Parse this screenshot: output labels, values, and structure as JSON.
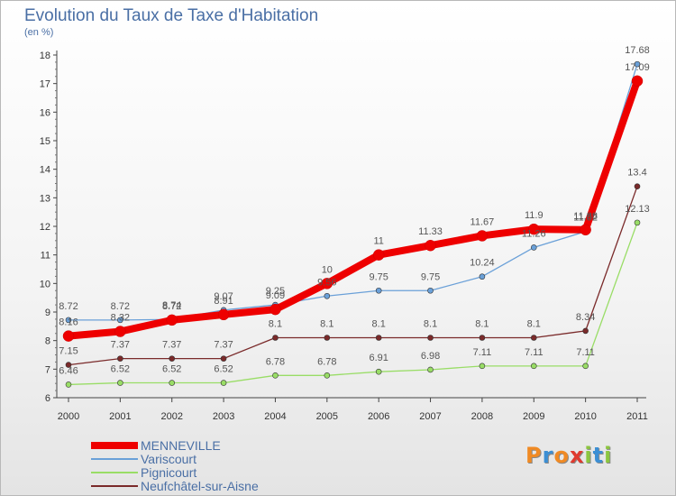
{
  "header": {
    "title": "Evolution du Taux de Taxe d'Habitation",
    "subtitle": "(en %)"
  },
  "logo": {
    "letters": [
      "P",
      "r",
      "o",
      "x",
      "i",
      "t",
      "i"
    ],
    "colors": [
      "#f08a24",
      "#3c8fd4",
      "#f08a24",
      "#e03a2e",
      "#8cc63f",
      "#3c8fd4",
      "#8cc63f"
    ]
  },
  "chart_data": {
    "type": "line",
    "title": "Evolution du Taux de Taxe d'Habitation",
    "subtitle": "(en %)",
    "xlabel": "",
    "ylabel": "",
    "ylim": [
      6,
      18
    ],
    "yticks": [
      "6",
      "7",
      "8",
      "9",
      "10",
      "11",
      "12",
      "13",
      "14",
      "15",
      "16",
      "17",
      "18"
    ],
    "categories": [
      "2000",
      "2001",
      "2002",
      "2003",
      "2004",
      "2005",
      "2006",
      "2007",
      "2008",
      "2009",
      "2010",
      "2011"
    ],
    "grid": false,
    "legend_position": "bottom-left",
    "series": [
      {
        "name": "MENNEVILLE",
        "color": "#ee0000",
        "values": [
          8.16,
          8.32,
          8.72,
          8.91,
          9.09,
          10,
          11,
          11.33,
          11.67,
          11.9,
          11.88,
          17.09
        ],
        "labels": [
          "8.16",
          "8.32",
          "8.72",
          "8.91",
          "9.09",
          "10",
          "11",
          "11.33",
          "11.67",
          "11.9",
          "11.88",
          "17.09"
        ]
      },
      {
        "name": "Variscourt",
        "color": "#6aa0d8",
        "values": [
          8.72,
          8.72,
          8.74,
          9.07,
          9.25,
          9.56,
          9.75,
          9.75,
          10.24,
          11.26,
          11.82,
          17.68
        ],
        "labels": [
          "8.72",
          "8.72",
          "8.74",
          "9.07",
          "9.25",
          "9.56",
          "9.75",
          "9.75",
          "10.24",
          "11.26",
          "11.82",
          "17.68"
        ]
      },
      {
        "name": "Pignicourt",
        "color": "#99dd66",
        "values": [
          6.46,
          6.52,
          6.52,
          6.52,
          6.78,
          6.78,
          6.91,
          6.98,
          7.11,
          7.11,
          7.11,
          12.13
        ],
        "labels": [
          "6.46",
          "6.52",
          "6.52",
          "6.52",
          "6.78",
          "6.78",
          "6.91",
          "6.98",
          "7.11",
          "7.11",
          "7.11",
          "12.13"
        ]
      },
      {
        "name": "Neufchâtel-sur-Aisne",
        "color": "#7a2a2a",
        "values": [
          7.15,
          7.37,
          7.37,
          7.37,
          8.1,
          8.1,
          8.1,
          8.1,
          8.1,
          8.1,
          8.34,
          13.4
        ],
        "labels": [
          "7.15",
          "7.37",
          "7.37",
          "7.37",
          "8.1",
          "8.1",
          "8.1",
          "8.1",
          "8.1",
          "8.1",
          "8.34",
          "13.4"
        ]
      }
    ]
  }
}
